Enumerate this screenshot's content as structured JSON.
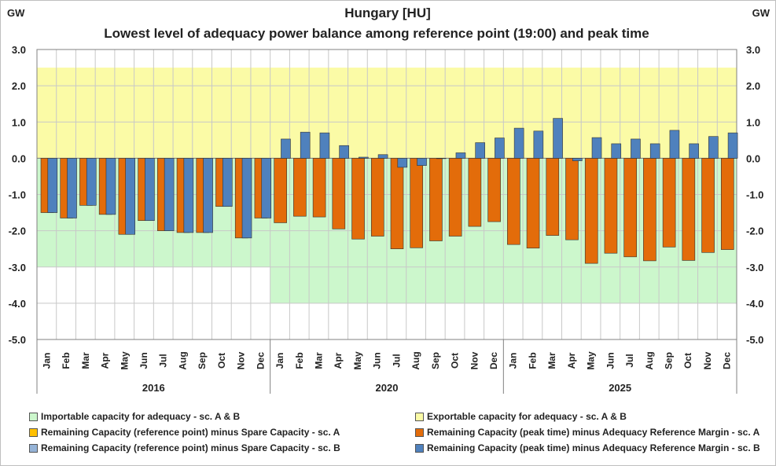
{
  "chart_data": {
    "type": "bar",
    "title": "Hungary [HU]",
    "subtitle": "Lowest level of adequacy power balance among reference point (19:00) and peak time",
    "ylabel_left": "GW",
    "ylabel_right": "GW",
    "ylim": [
      -5,
      3
    ],
    "yticks": [
      "3.0",
      "2.0",
      "1.0",
      "0.0",
      "-1.0",
      "-2.0",
      "-3.0",
      "-4.0",
      "-5.0"
    ],
    "ytick_values": [
      3,
      2,
      1,
      0,
      -1,
      -2,
      -3,
      -4,
      -5
    ],
    "groups": [
      {
        "label": "2016",
        "months": [
          "Jan",
          "Feb",
          "Mar",
          "Apr",
          "May",
          "Jun",
          "Jul",
          "Aug",
          "Sep",
          "Oct",
          "Nov",
          "Dec"
        ]
      },
      {
        "label": "2020",
        "months": [
          "Jan",
          "Feb",
          "Mar",
          "Apr",
          "May",
          "Jun",
          "Jul",
          "Aug",
          "Sep",
          "Oct",
          "Nov",
          "Dec"
        ]
      },
      {
        "label": "2025",
        "months": [
          "Jan",
          "Feb",
          "Mar",
          "Apr",
          "May",
          "Jun",
          "Jul",
          "Aug",
          "Sep",
          "Oct",
          "Nov",
          "Dec"
        ]
      }
    ],
    "importable_capacity": [
      -3.0,
      -4.0,
      -4.0
    ],
    "exportable_capacity": [
      2.5,
      2.5,
      2.5
    ],
    "series": [
      {
        "name": "Remaining Capacity (reference point) minus Spare Capacity - sc. A",
        "group": "2016",
        "values": [
          -1.5,
          -1.65,
          -1.3,
          -1.55,
          -2.1,
          -1.72,
          -2.0,
          -2.05,
          -2.05,
          -1.33,
          -2.2,
          -1.65
        ]
      },
      {
        "name": "Remaining Capacity (reference point) minus Spare Capacity - sc. B",
        "group": "2016",
        "values": [
          -1.5,
          -1.65,
          -1.3,
          -1.55,
          -2.1,
          -1.72,
          -2.0,
          -2.05,
          -2.05,
          -1.33,
          -2.2,
          -1.65
        ]
      },
      {
        "name": "Remaining Capacity (peak time) minus Adequacy Reference Margin - sc. A",
        "group": "2020",
        "values": [
          -1.78,
          -1.6,
          -1.62,
          -1.95,
          -2.23,
          -2.15,
          -2.5,
          -2.47,
          -2.28,
          -2.15,
          -1.88,
          -1.75
        ]
      },
      {
        "name": "Remaining Capacity (peak time) minus Adequacy Reference Margin - sc. B",
        "group": "2020",
        "values": [
          0.53,
          0.72,
          0.7,
          0.35,
          0.03,
          0.1,
          -0.25,
          -0.2,
          0.0,
          0.15,
          0.43,
          0.56
        ]
      },
      {
        "name": "Remaining Capacity (peak time) minus Adequacy Reference Margin - sc. A",
        "group": "2025",
        "values": [
          -2.38,
          -2.48,
          -2.13,
          -2.25,
          -2.9,
          -2.62,
          -2.72,
          -2.83,
          -2.45,
          -2.82,
          -2.6,
          -2.52
        ]
      },
      {
        "name": "Remaining Capacity (peak time) minus Adequacy Reference Margin - sc. B",
        "group": "2025",
        "values": [
          0.83,
          0.75,
          1.1,
          -0.07,
          0.57,
          0.4,
          0.53,
          0.4,
          0.77,
          0.4,
          0.6,
          0.7
        ]
      }
    ],
    "legend": [
      {
        "label": "Importable capacity for adequacy - sc. A & B",
        "color": "#ccf7cc"
      },
      {
        "label": "Exportable capacity for adequacy - sc. A & B",
        "color": "#fbfba6"
      },
      {
        "label": "Remaining Capacity (reference point) minus Spare Capacity - sc. A",
        "color": "#ffc000"
      },
      {
        "label": "Remaining Capacity (peak time) minus Adequacy Reference Margin - sc. A",
        "color": "#e36c0a"
      },
      {
        "label": "Remaining Capacity (reference point) minus Spare Capacity - sc. B",
        "color": "#95b3d7"
      },
      {
        "label": "Remaining Capacity (peak time) minus Adequacy Reference Margin - sc. B",
        "color": "#4f81bd"
      }
    ],
    "colors": {
      "import": "#ccf7cc",
      "export": "#fbfba6",
      "orange": "#e36c0a",
      "blue": "#4f81bd",
      "grid": "#c8c8c8"
    }
  }
}
